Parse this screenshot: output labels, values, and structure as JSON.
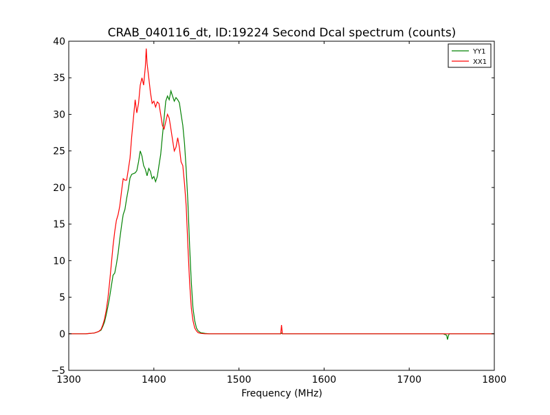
{
  "chart_data": {
    "type": "line",
    "title": "CRAB_040116_dt, ID:19224 Second Dcal spectrum (counts)",
    "xlabel": "Frequency (MHz)",
    "ylabel": "",
    "xlim": [
      1300,
      1800
    ],
    "ylim": [
      -5,
      40
    ],
    "xticks": [
      1300,
      1400,
      1500,
      1600,
      1700,
      1800
    ],
    "yticks": [
      -5,
      0,
      5,
      10,
      15,
      20,
      25,
      30,
      35,
      40
    ],
    "xtick_labels": [
      "1300",
      "1400",
      "1500",
      "1600",
      "1700",
      "1800"
    ],
    "ytick_labels": [
      "−5",
      "0",
      "5",
      "10",
      "15",
      "20",
      "25",
      "30",
      "35",
      "40"
    ],
    "grid": false,
    "legend_position": "top-right",
    "series": [
      {
        "name": "YY1",
        "color": "#008000",
        "x": [
          1300,
          1320,
          1330,
          1335,
          1338,
          1340,
          1342,
          1344,
          1346,
          1348,
          1350,
          1352,
          1354,
          1356,
          1358,
          1360,
          1362,
          1364,
          1366,
          1368,
          1370,
          1372,
          1374,
          1376,
          1378,
          1380,
          1382,
          1384,
          1386,
          1388,
          1390,
          1392,
          1394,
          1396,
          1398,
          1400,
          1402,
          1404,
          1406,
          1408,
          1410,
          1412,
          1414,
          1416,
          1418,
          1420,
          1422,
          1424,
          1426,
          1428,
          1430,
          1432,
          1434,
          1436,
          1438,
          1440,
          1442,
          1444,
          1446,
          1448,
          1450,
          1452,
          1455,
          1460,
          1465,
          1470,
          1480,
          1500,
          1549,
          1550,
          1551,
          1600,
          1700,
          1740,
          1744,
          1745,
          1746,
          1747,
          1750,
          1800
        ],
        "y": [
          0,
          0,
          0.1,
          0.3,
          0.5,
          1,
          1.6,
          2.6,
          3.7,
          5,
          6.5,
          8,
          8.3,
          9.5,
          11,
          13,
          14.8,
          16.3,
          17,
          18.5,
          19.8,
          21.3,
          21.8,
          21.9,
          22,
          22.3,
          23.5,
          25,
          24.3,
          23,
          22.5,
          21.6,
          22.6,
          22.2,
          21.2,
          21.5,
          20.8,
          21.5,
          23,
          24.5,
          27,
          29.5,
          31.8,
          32.5,
          32,
          33.2,
          32.5,
          31.8,
          32.3,
          32,
          31.6,
          30,
          28.5,
          26,
          22.5,
          18,
          12,
          7,
          3.5,
          1.8,
          0.8,
          0.4,
          0.15,
          0.05,
          0,
          0,
          0,
          0,
          0,
          0.1,
          0,
          0,
          0,
          0,
          -0.2,
          -0.8,
          -0.3,
          0,
          0,
          0
        ]
      },
      {
        "name": "XX1",
        "color": "#ff0000",
        "x": [
          1300,
          1320,
          1330,
          1335,
          1338,
          1340,
          1342,
          1344,
          1346,
          1348,
          1350,
          1352,
          1354,
          1356,
          1358,
          1360,
          1362,
          1364,
          1366,
          1368,
          1370,
          1372,
          1374,
          1376,
          1378,
          1380,
          1382,
          1384,
          1386,
          1388,
          1390,
          1391,
          1392,
          1394,
          1396,
          1398,
          1400,
          1402,
          1404,
          1406,
          1408,
          1410,
          1412,
          1414,
          1416,
          1418,
          1420,
          1422,
          1424,
          1426,
          1428,
          1430,
          1432,
          1434,
          1436,
          1438,
          1440,
          1442,
          1444,
          1446,
          1448,
          1450,
          1452,
          1455,
          1460,
          1465,
          1470,
          1480,
          1500,
          1549,
          1550,
          1551,
          1552,
          1600,
          1700,
          1800
        ],
        "y": [
          0,
          0,
          0.1,
          0.3,
          0.6,
          1.2,
          2,
          3.2,
          4.8,
          7,
          9.5,
          12,
          14,
          15.5,
          16.3,
          17.5,
          19.5,
          21.2,
          21,
          21,
          22.5,
          24,
          27,
          29.5,
          32,
          30.2,
          31.5,
          34,
          35,
          34,
          36.5,
          39,
          37,
          35,
          33,
          31.5,
          31.8,
          31,
          31.7,
          31.5,
          30,
          28.5,
          28,
          29,
          30,
          29.5,
          28,
          26.5,
          25,
          25.5,
          26.8,
          25.5,
          23.5,
          23,
          20.5,
          17.5,
          12,
          7,
          3.5,
          1.8,
          0.8,
          0.4,
          0.15,
          0.05,
          0,
          0,
          0,
          0,
          0,
          0,
          1.2,
          0,
          0,
          0,
          0,
          0
        ]
      }
    ]
  }
}
